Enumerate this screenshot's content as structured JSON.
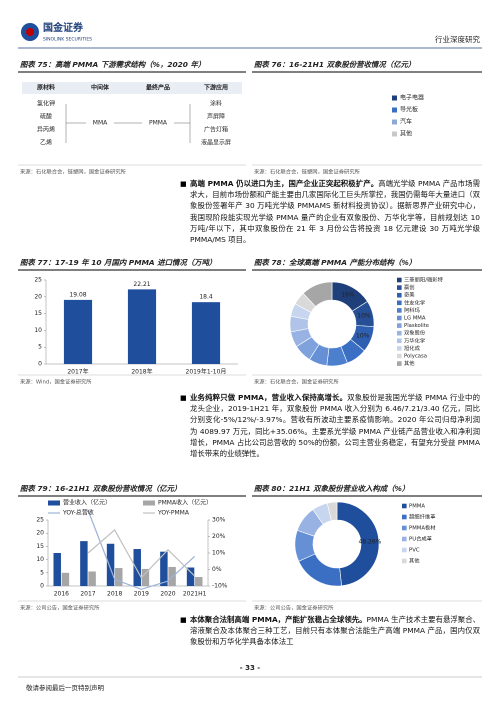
{
  "header": {
    "logo_cn": "国金证券",
    "logo_en": "SINOLINK SECURITIES",
    "report_type": "行业深度研究"
  },
  "chart_data": [
    {
      "type": "flow",
      "title": "图表 75：高端 PMMA 下游需求结构（%，2020 年）",
      "columns": [
        "原材料",
        "中间体",
        "最终产品",
        "下游应用"
      ],
      "raw_materials": [
        "氯化钾",
        "硫酸",
        "异丙烯",
        "乙烯"
      ],
      "intermediate": "MMA",
      "product": "PMMA",
      "applications": [
        "涂料",
        "声屏障",
        "广告灯箱",
        "液晶显示屏"
      ],
      "source": "来源：石化联合会，链塑网，国金证券研究所"
    },
    {
      "type": "legend",
      "title": "图表 76：16-21H1 双象股份营收情况（亿元）",
      "legend": [
        {
          "name": "电子电器",
          "color": "#1f3f7a"
        },
        {
          "name": "导光板",
          "color": "#3a6fc4"
        },
        {
          "name": "汽车",
          "color": "#8fa9d6"
        },
        {
          "name": "其他",
          "color": "#c8c8c8"
        }
      ],
      "source": "来源：石化联合会，链塑网，国金证券研究所"
    },
    {
      "type": "bar",
      "title": "图表 77：17-19 年 10 月国内 PMMA 进口情况（万吨）",
      "categories": [
        "2017年",
        "2018年",
        "2019年1-10月"
      ],
      "values": [
        19.08,
        22.21,
        18.4
      ],
      "color": "#1f4e9c",
      "ylim": [
        0,
        25
      ],
      "yticks": [
        0,
        5,
        10,
        15,
        20,
        25
      ],
      "source": "来源：Wind，国金证券研究所"
    },
    {
      "type": "donut",
      "title": "图表 78：全球高端 PMMA 产能分布结构（%）",
      "categories": [
        "三菱丽阳/璐彩特",
        "赢创",
        "奇美",
        "住友化学",
        "阿科玛",
        "LG MMA",
        "Plaskolite",
        "双象股份",
        "万华化学",
        "旭化成",
        "Polycasa",
        "其他"
      ],
      "values": [
        16,
        10,
        10,
        8,
        8,
        7,
        7,
        6,
        6,
        5,
        5,
        12
      ],
      "value_labels": [
        "16%",
        "10%",
        "10%",
        null,
        null,
        null,
        null,
        null,
        null,
        null,
        null,
        null
      ],
      "colors": [
        "#1f3f7a",
        "#274f96",
        "#2f5fb0",
        "#3a6fc4",
        "#4d7fcf",
        "#6690d6",
        "#7fa1dc",
        "#98b3e3",
        "#b0c4e9",
        "#c7d5ef",
        "#d9d9d9",
        "#a6a6a6"
      ],
      "source": "来源：石化联合会，国金证券研究所"
    },
    {
      "type": "combo",
      "title": "图表 79：16-21H1 双象股份营收情况（亿元）",
      "categories": [
        "2016",
        "2017",
        "2018",
        "2019",
        "2020",
        "2021H1"
      ],
      "series": [
        {
          "name": "营业收入（亿元）",
          "type": "bar",
          "color": "#1f4e9c",
          "values": [
            12.5,
            17,
            16,
            14,
            13,
            7
          ]
        },
        {
          "name": "PMMA收入（亿元）",
          "type": "bar",
          "color": "#a6a6a6",
          "values": [
            5,
            5.5,
            6.8,
            6.46,
            7.21,
            3.4
          ]
        },
        {
          "name": "YOY-总营收",
          "type": "line",
          "axis": "y2",
          "color": "#9db3d9",
          "values": [
            null,
            36,
            -6,
            -12,
            -7,
            8
          ]
        },
        {
          "name": "YOY-PMMA",
          "type": "line",
          "axis": "y2",
          "color": "#bfbfbf",
          "values": [
            null,
            10,
            24,
            -5,
            12,
            -3.97
          ]
        }
      ],
      "ylim": [
        0,
        25
      ],
      "yticks": [
        0,
        5,
        10,
        15,
        20,
        25
      ],
      "y2lim": [
        -10,
        30
      ],
      "y2ticks": [
        {
          "value": -10,
          "label": "-10%"
        },
        {
          "value": 0,
          "label": "0%"
        },
        {
          "value": 10,
          "label": "10%"
        },
        {
          "value": 20,
          "label": "20%"
        },
        {
          "value": 30,
          "label": "30%"
        }
      ],
      "source": "来源：公司公告，国金证券研究所"
    },
    {
      "type": "donut",
      "title": "图表 80：21H1 双象股份营业收入构成（%）",
      "categories": [
        "PMMA",
        "超细纤维革",
        "PMMA板材",
        "PU合成革",
        "PVC",
        "其他"
      ],
      "values": [
        48.26,
        20,
        12,
        10,
        6,
        3.74
      ],
      "value_labels": [
        "48.26%",
        null,
        null,
        null,
        null,
        null
      ],
      "colors": [
        "#1f4e9c",
        "#3a6fc4",
        "#6690d6",
        "#98b3e3",
        "#c7d5ef",
        "#d9d9d9"
      ],
      "source": "来源：公司公告，国金证券研究所"
    }
  ],
  "paragraphs": [
    {
      "lead": "高端 PMMA 仍以进口为主，国产企业正突起积极扩产。",
      "text": "高端光学级 PMMA 产品市场需求大，目前市场份额和产能主要由几家国际化工巨头所掌控，我国仍需每年大量进口（双象股份签署年产 30 万吨光学级 PMMAMS 新材料投资协议）。据新思界产业研究中心，我国现阶段能实现光学级 PMMA 量产的企业有双象股份、万华化学等，目前规划达 10 万吨/年以下，其中双象股份在 21 年 3 月份公告将投资 18 亿元建设 30 万吨光学级 PMMA/MS 项目。"
    },
    {
      "lead": "业务纯粹只做 PMMA，营业收入保持高增长。",
      "text": "双象股份是我国光学级 PMMA 行业中的龙头企业，2019-1H21 年，双象股份 PMMA 收入分别为 6.46/7.21/3.40 亿元，同比分别变化-5%/12%/-3.97%。营收有所波动主要系疫情影响。2020 年公司归母净利润为 4089.97 万元，同比+35.06%。主要系光学级 PMMA 产业链产品营业收入和净利润增长，PMMA 占比公司总营收的 50%的份额，公司主营业务稳定，有望充分受益 PMMA 增长带来的业绩弹性。"
    },
    {
      "lead": "本体聚合法制高端 PMMA，产能扩张稳占全球领先。",
      "text": "PMMA 生产技术主要有悬浮聚合、溶液聚合及本体聚合三种工艺，目前只有本体聚合法能生产高端 PMMA 产品，国内仅双象股份和万华化学具备本体法工"
    }
  ],
  "footer": {
    "page": "- 33 -",
    "disclaimer": "敬请参阅最后一页特别声明"
  }
}
